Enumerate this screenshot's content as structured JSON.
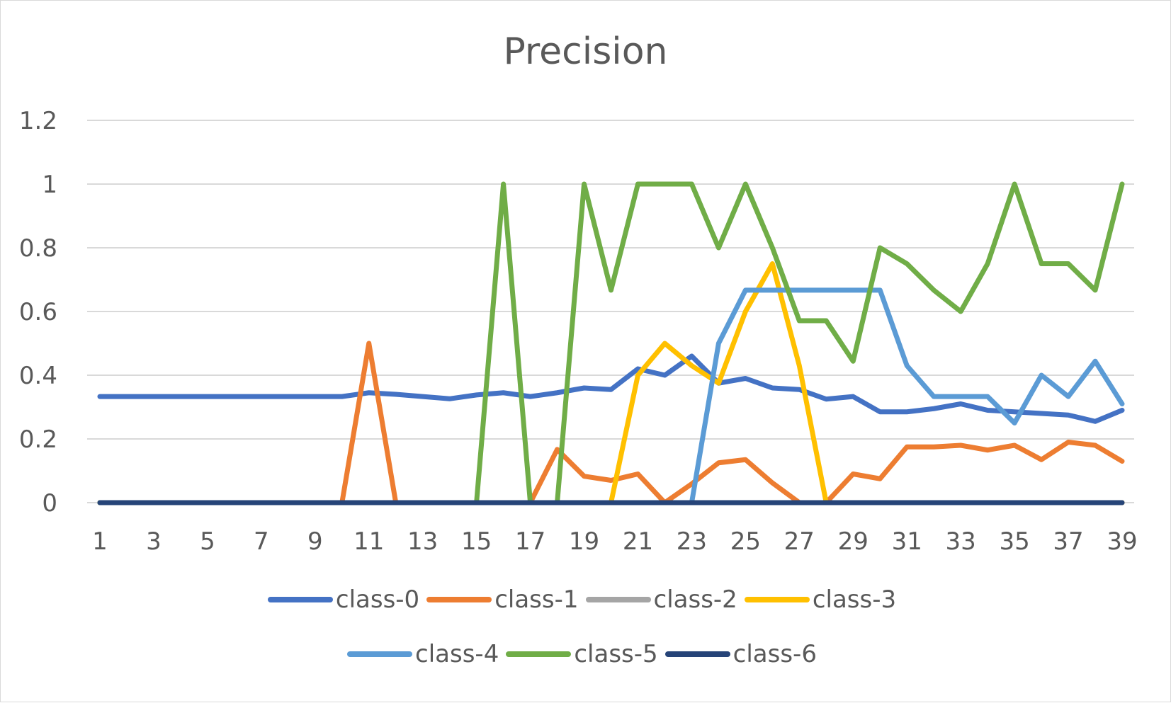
{
  "chart_data": {
    "type": "line",
    "title": "Precision",
    "xlabel": "",
    "ylabel": "",
    "ylim": [
      0,
      1.2
    ],
    "yticks": [
      "0",
      "0.2",
      "0.4",
      "0.6",
      "0.8",
      "1",
      "1.2"
    ],
    "x": [
      1,
      2,
      3,
      4,
      5,
      6,
      7,
      8,
      9,
      10,
      11,
      12,
      13,
      14,
      15,
      16,
      17,
      18,
      19,
      20,
      21,
      22,
      23,
      24,
      25,
      26,
      27,
      28,
      29,
      30,
      31,
      32,
      33,
      34,
      35,
      36,
      37,
      38,
      39
    ],
    "xtick_labels": [
      "1",
      "3",
      "5",
      "7",
      "9",
      "11",
      "13",
      "15",
      "17",
      "19",
      "21",
      "23",
      "25",
      "27",
      "29",
      "31",
      "33",
      "35",
      "37",
      "39"
    ],
    "grid": true,
    "legend_position": "bottom",
    "series": [
      {
        "name": "class-0",
        "color": "#4472C4",
        "values": [
          0.333,
          0.333,
          0.333,
          0.333,
          0.333,
          0.333,
          0.333,
          0.333,
          0.333,
          0.333,
          0.345,
          0.34,
          0.333,
          0.326,
          0.338,
          0.345,
          0.333,
          0.345,
          0.36,
          0.355,
          0.42,
          0.4,
          0.46,
          0.375,
          0.39,
          0.36,
          0.355,
          0.325,
          0.333,
          0.285,
          0.285,
          0.295,
          0.31,
          0.29,
          0.285,
          0.28,
          0.275,
          0.255,
          0.29
        ]
      },
      {
        "name": "class-1",
        "color": "#ED7D31",
        "values": [
          0,
          0,
          0,
          0,
          0,
          0,
          0,
          0,
          0,
          0,
          0.5,
          0,
          0,
          0,
          0,
          0,
          0,
          0.167,
          0.083,
          0.07,
          0.09,
          0,
          0.059,
          0.125,
          0.135,
          0.062,
          0,
          0,
          0.09,
          0.075,
          0.175,
          0.175,
          0.18,
          0.165,
          0.18,
          0.135,
          0.19,
          0.18,
          0.13
        ]
      },
      {
        "name": "class-2",
        "color": "#A5A5A5",
        "values": [
          0,
          0,
          0,
          0,
          0,
          0,
          0,
          0,
          0,
          0,
          0,
          0,
          0,
          0,
          0,
          0,
          0,
          0,
          0,
          0,
          0,
          0,
          0,
          0,
          0,
          0,
          0,
          0,
          0,
          0,
          0,
          0,
          0,
          0,
          0,
          0,
          0,
          0,
          0
        ]
      },
      {
        "name": "class-3",
        "color": "#FFC000",
        "values": [
          0,
          0,
          0,
          0,
          0,
          0,
          0,
          0,
          0,
          0,
          0,
          0,
          0,
          0,
          0,
          0,
          0,
          0,
          0,
          0,
          0.4,
          0.5,
          0.43,
          0.375,
          0.6,
          0.75,
          0.43,
          0,
          0,
          0,
          0,
          0,
          0,
          0,
          0,
          0,
          0,
          0,
          0
        ]
      },
      {
        "name": "class-4",
        "color": "#5B9BD5",
        "values": [
          0,
          0,
          0,
          0,
          0,
          0,
          0,
          0,
          0,
          0,
          0,
          0,
          0,
          0,
          0,
          0,
          0,
          0,
          0,
          0,
          0,
          0,
          0,
          0.5,
          0.667,
          0.667,
          0.667,
          0.667,
          0.667,
          0.667,
          0.43,
          0.333,
          0.333,
          0.333,
          0.25,
          0.4,
          0.333,
          0.444,
          0.31
        ]
      },
      {
        "name": "class-5",
        "color": "#70AD47",
        "values": [
          0,
          0,
          0,
          0,
          0,
          0,
          0,
          0,
          0,
          0,
          0,
          0,
          0,
          0,
          0,
          1,
          0,
          0,
          1,
          0.667,
          1,
          1,
          1,
          0.8,
          1,
          0.8,
          0.571,
          0.571,
          0.444,
          0.8,
          0.75,
          0.667,
          0.6,
          0.75,
          1,
          0.75,
          0.75,
          0.667,
          1
        ]
      },
      {
        "name": "class-6",
        "color": "#264478",
        "values": [
          0,
          0,
          0,
          0,
          0,
          0,
          0,
          0,
          0,
          0,
          0,
          0,
          0,
          0,
          0,
          0,
          0,
          0,
          0,
          0,
          0,
          0,
          0,
          0,
          0,
          0,
          0,
          0,
          0,
          0,
          0,
          0,
          0,
          0,
          0,
          0,
          0,
          0,
          0
        ]
      }
    ]
  },
  "legend_rows": [
    [
      0,
      1,
      2,
      3
    ],
    [
      4,
      5,
      6
    ]
  ]
}
